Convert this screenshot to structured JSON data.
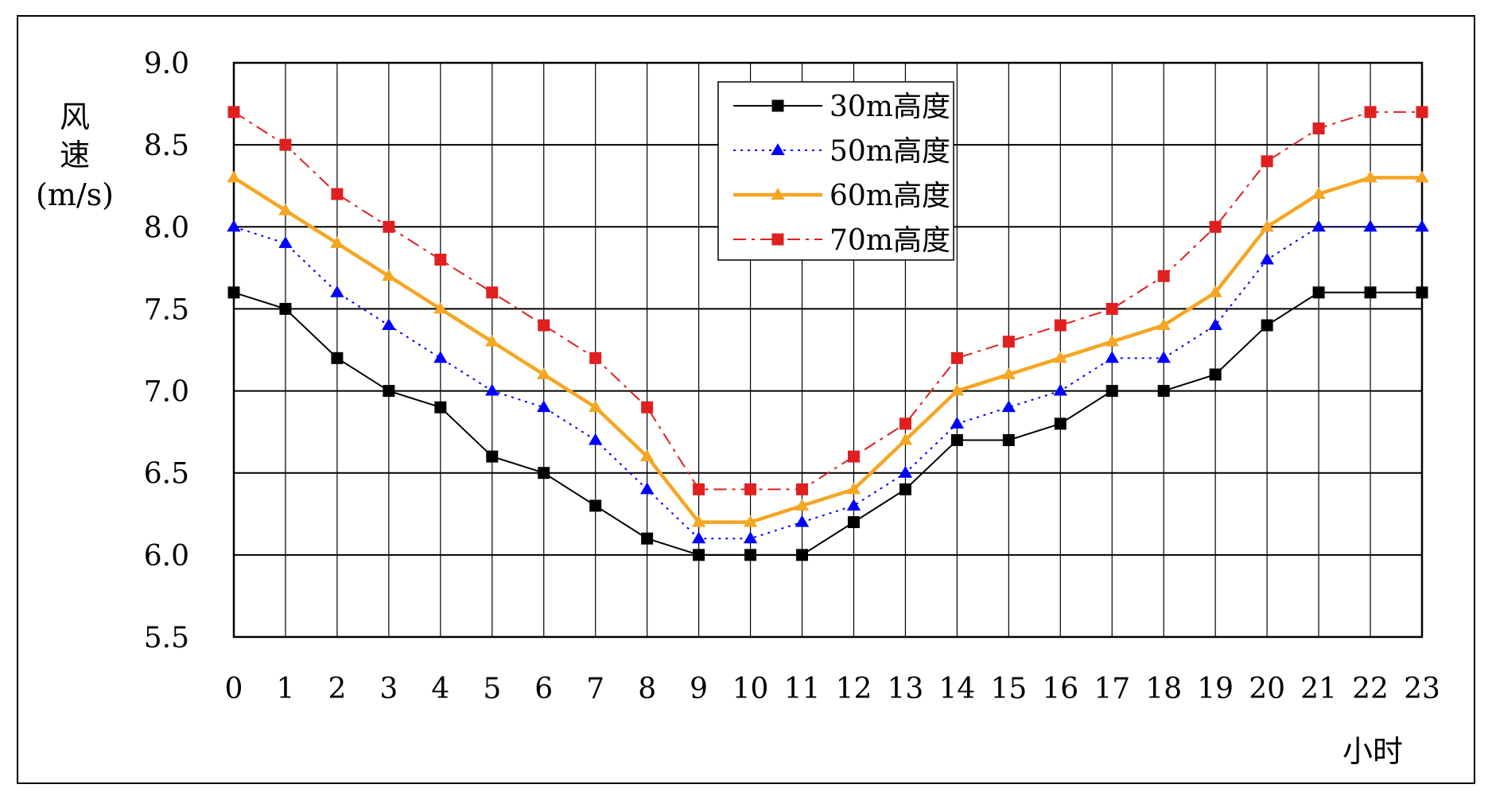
{
  "chart_data": {
    "type": "line",
    "title": "",
    "ylabel": "风\n速\n(m/s)",
    "xlabel": "小时",
    "ylim": [
      5.5,
      9.0
    ],
    "yticks": [
      5.5,
      6.0,
      6.5,
      7.0,
      7.5,
      8.0,
      8.5,
      9.0
    ],
    "ytick_labels": [
      "5.5",
      "6.0",
      "6.5",
      "7.0",
      "7.5",
      "8.0",
      "8.5",
      "9.0"
    ],
    "x": [
      0,
      1,
      2,
      3,
      4,
      5,
      6,
      7,
      8,
      9,
      10,
      11,
      12,
      13,
      14,
      15,
      16,
      17,
      18,
      19,
      20,
      21,
      22,
      23
    ],
    "grid": true,
    "legend_position": "top-center",
    "series": [
      {
        "name": "30m高度",
        "color": "#000000",
        "line_style": "solid",
        "marker": "square",
        "values": [
          7.6,
          7.5,
          7.2,
          7.0,
          6.9,
          6.6,
          6.5,
          6.3,
          6.1,
          6.0,
          6.0,
          6.0,
          6.2,
          6.4,
          6.7,
          6.7,
          6.8,
          7.0,
          7.0,
          7.1,
          7.4,
          7.6,
          7.6,
          7.6
        ]
      },
      {
        "name": "50m高度",
        "color": "#0000ff",
        "line_style": "dotted",
        "marker": "triangle",
        "values": [
          8.0,
          7.9,
          7.6,
          7.4,
          7.2,
          7.0,
          6.9,
          6.7,
          6.4,
          6.1,
          6.1,
          6.2,
          6.3,
          6.5,
          6.8,
          6.9,
          7.0,
          7.2,
          7.2,
          7.4,
          7.8,
          8.0,
          8.0,
          8.0
        ]
      },
      {
        "name": "60m高度",
        "color": "#f5a623",
        "line_style": "solid-thick",
        "marker": "triangle",
        "values": [
          8.3,
          8.1,
          7.9,
          7.7,
          7.5,
          7.3,
          7.1,
          6.9,
          6.6,
          6.2,
          6.2,
          6.3,
          6.4,
          6.7,
          7.0,
          7.1,
          7.2,
          7.3,
          7.4,
          7.6,
          8.0,
          8.2,
          8.3,
          8.3
        ]
      },
      {
        "name": "70m高度",
        "color": "#e02020",
        "line_style": "dashdot",
        "marker": "square",
        "values": [
          8.7,
          8.5,
          8.2,
          8.0,
          7.8,
          7.6,
          7.4,
          7.2,
          6.9,
          6.4,
          6.4,
          6.4,
          6.6,
          6.8,
          7.2,
          7.3,
          7.4,
          7.5,
          7.7,
          8.0,
          8.4,
          8.6,
          8.7,
          8.7
        ]
      }
    ]
  }
}
